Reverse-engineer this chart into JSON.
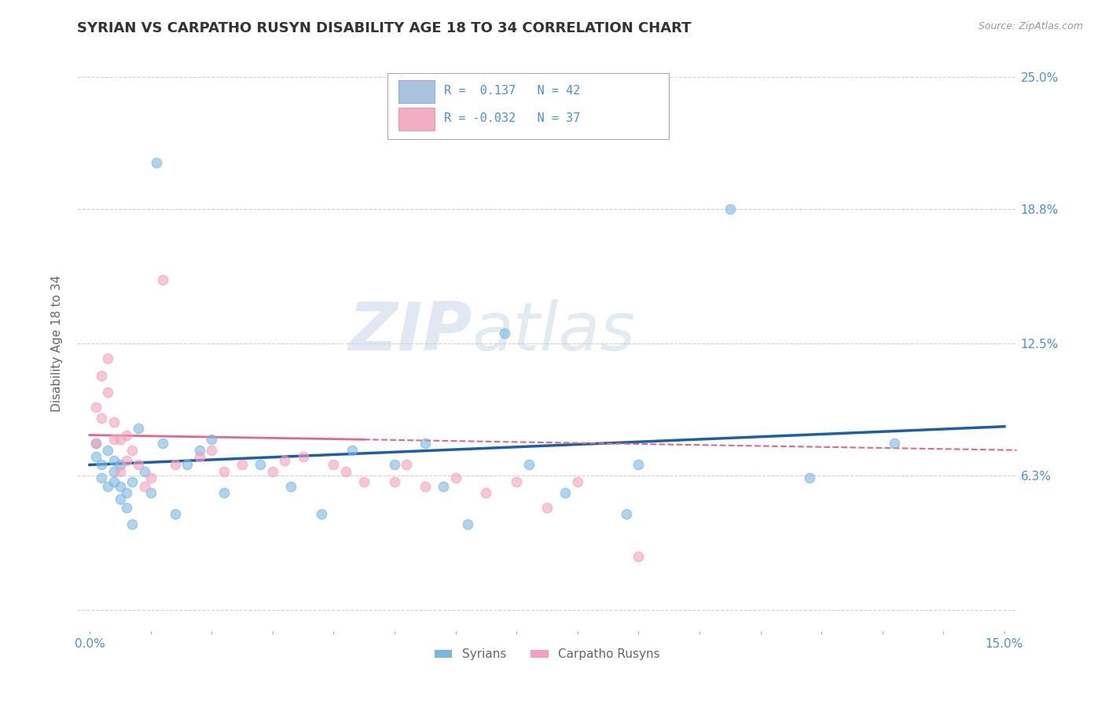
{
  "title": "SYRIAN VS CARPATHO RUSYN DISABILITY AGE 18 TO 34 CORRELATION CHART",
  "source": "Source: ZipAtlas.com",
  "ylabel": "Disability Age 18 to 34",
  "xlim": [
    -0.002,
    0.152
  ],
  "ylim": [
    -0.01,
    0.26
  ],
  "ytick_values": [
    0.0,
    0.063,
    0.125,
    0.188,
    0.25
  ],
  "ytick_labels": [
    "",
    "6.3%",
    "12.5%",
    "18.8%",
    "25.0%"
  ],
  "legend_items": [
    {
      "label": "R =  0.137   N = 42",
      "color": "#aac4e0"
    },
    {
      "label": "R = -0.032   N = 37",
      "color": "#f4aec4"
    }
  ],
  "syrians_x": [
    0.001,
    0.001,
    0.002,
    0.002,
    0.003,
    0.003,
    0.004,
    0.004,
    0.004,
    0.005,
    0.005,
    0.005,
    0.006,
    0.006,
    0.007,
    0.007,
    0.008,
    0.009,
    0.01,
    0.011,
    0.012,
    0.014,
    0.016,
    0.018,
    0.02,
    0.022,
    0.028,
    0.033,
    0.038,
    0.043,
    0.05,
    0.055,
    0.058,
    0.062,
    0.068,
    0.072,
    0.078,
    0.088,
    0.09,
    0.105,
    0.118,
    0.132
  ],
  "syrians_y": [
    0.078,
    0.072,
    0.068,
    0.062,
    0.075,
    0.058,
    0.07,
    0.065,
    0.06,
    0.068,
    0.058,
    0.052,
    0.055,
    0.048,
    0.06,
    0.04,
    0.085,
    0.065,
    0.055,
    0.21,
    0.078,
    0.045,
    0.068,
    0.075,
    0.08,
    0.055,
    0.068,
    0.058,
    0.045,
    0.075,
    0.068,
    0.078,
    0.058,
    0.04,
    0.13,
    0.068,
    0.055,
    0.045,
    0.068,
    0.188,
    0.062,
    0.078
  ],
  "carpatho_x": [
    0.001,
    0.001,
    0.002,
    0.002,
    0.003,
    0.003,
    0.004,
    0.004,
    0.005,
    0.005,
    0.006,
    0.006,
    0.007,
    0.008,
    0.009,
    0.01,
    0.012,
    0.014,
    0.018,
    0.02,
    0.022,
    0.025,
    0.03,
    0.032,
    0.035,
    0.04,
    0.042,
    0.045,
    0.05,
    0.052,
    0.055,
    0.06,
    0.065,
    0.07,
    0.075,
    0.08,
    0.09
  ],
  "carpatho_y": [
    0.095,
    0.078,
    0.11,
    0.09,
    0.102,
    0.118,
    0.08,
    0.088,
    0.08,
    0.065,
    0.082,
    0.07,
    0.075,
    0.068,
    0.058,
    0.062,
    0.155,
    0.068,
    0.072,
    0.075,
    0.065,
    0.068,
    0.065,
    0.07,
    0.072,
    0.068,
    0.065,
    0.06,
    0.06,
    0.068,
    0.058,
    0.062,
    0.055,
    0.06,
    0.048,
    0.06,
    0.025
  ],
  "syrian_color": "#7ab8e0",
  "carpatho_color": "#f4a0bc",
  "syrian_line_color": "#1a5fa8",
  "carpatho_line_color": "#e06888",
  "background_color": "#ffffff",
  "grid_color": "#cccccc",
  "title_color": "#333333",
  "axis_label_color": "#666666",
  "tick_label_color": "#4a90d9",
  "watermark_left": "ZIP",
  "watermark_right": "atlas",
  "bottom_legend": [
    "Syrians",
    "Carpatho Rusyns"
  ]
}
